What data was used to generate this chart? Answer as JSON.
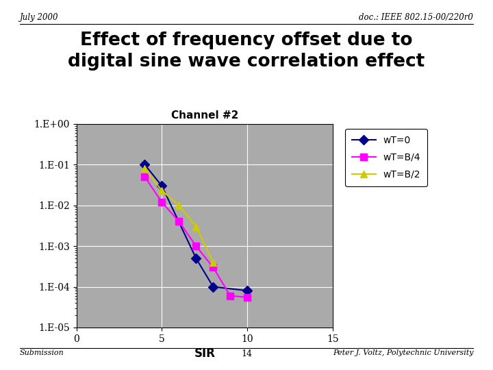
{
  "title": "Effect of frequency offset due to\ndigital sine wave correlation effect",
  "header_left": "July 2000",
  "header_right": "doc.: IEEE 802.15-00/220r0",
  "footer_left": "Submission",
  "footer_center": "14",
  "footer_right": "Peter J. Voltz, Polytechnic University",
  "chart_title": "Channel #2",
  "xlabel": "SIR",
  "xlim": [
    0,
    15
  ],
  "xticks": [
    0,
    5,
    10,
    15
  ],
  "ytick_labels": [
    "1.E-05",
    "1.E-04",
    "1.E-03",
    "1.E-02",
    "1.E-01",
    "1.E+00"
  ],
  "series": [
    {
      "label": "wT=0",
      "color": "#00008B",
      "marker": "D",
      "markersize": 7,
      "x": [
        4,
        5,
        7,
        8,
        10
      ],
      "y": [
        0.1,
        0.03,
        0.0005,
        0.0001,
        8e-05
      ]
    },
    {
      "label": "wT=B/4",
      "color": "#FF00FF",
      "marker": "s",
      "markersize": 7,
      "x": [
        4,
        5,
        6,
        7,
        8,
        9,
        10
      ],
      "y": [
        0.05,
        0.012,
        0.004,
        0.001,
        0.0003,
        6e-05,
        5.5e-05
      ]
    },
    {
      "label": "wT=B/2",
      "color": "#CCCC00",
      "marker": "^",
      "markersize": 7,
      "x": [
        4,
        5,
        6,
        7,
        8
      ],
      "y": [
        0.08,
        0.023,
        0.01,
        0.003,
        0.0004
      ]
    }
  ],
  "bg_color": "#ffffff",
  "plot_bg_color": "#aaaaaa",
  "grid_color": "#ffffff"
}
